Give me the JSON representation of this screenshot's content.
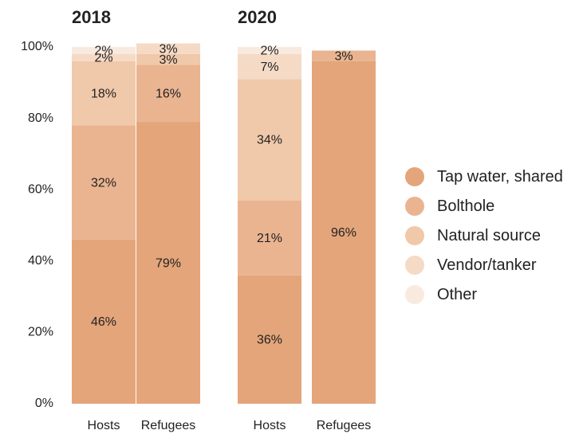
{
  "chart_data": {
    "type": "stacked-bar",
    "groups": [
      "2018",
      "2020"
    ],
    "categories": [
      "Hosts",
      "Refugees",
      "Hosts",
      "Refugees"
    ],
    "category_group": [
      0,
      0,
      1,
      1
    ],
    "ylim": [
      0,
      100
    ],
    "yticks": [
      {
        "value": 0,
        "label": "0%"
      },
      {
        "value": 20,
        "label": "20%"
      },
      {
        "value": 40,
        "label": "40%"
      },
      {
        "value": 60,
        "label": "60%"
      },
      {
        "value": 80,
        "label": "80%"
      },
      {
        "value": 100,
        "label": "100%"
      }
    ],
    "series": [
      {
        "name": "Tap water, shared",
        "color": "#e4a57a",
        "values": [
          46,
          79,
          36,
          96
        ],
        "value_labels": [
          "46%",
          "79%",
          "36%",
          "96%"
        ]
      },
      {
        "name": "Bolthole",
        "color": "#eab491",
        "values": [
          32,
          16,
          21,
          3
        ],
        "value_labels": [
          "32%",
          "16%",
          "21%",
          "3%"
        ]
      },
      {
        "name": "Natural source",
        "color": "#f0c8aa",
        "values": [
          18,
          3,
          34,
          null
        ],
        "value_labels": [
          "18%",
          "3%",
          "34%",
          null
        ]
      },
      {
        "name": "Vendor/tanker",
        "color": "#f5dac6",
        "values": [
          2,
          3,
          7,
          null
        ],
        "value_labels": [
          "2%",
          "3%",
          "7%",
          null
        ]
      },
      {
        "name": "Other",
        "color": "#f9eadf",
        "values": [
          2,
          null,
          2,
          null
        ],
        "value_labels": [
          "2%",
          null,
          "2%",
          null
        ]
      }
    ]
  }
}
